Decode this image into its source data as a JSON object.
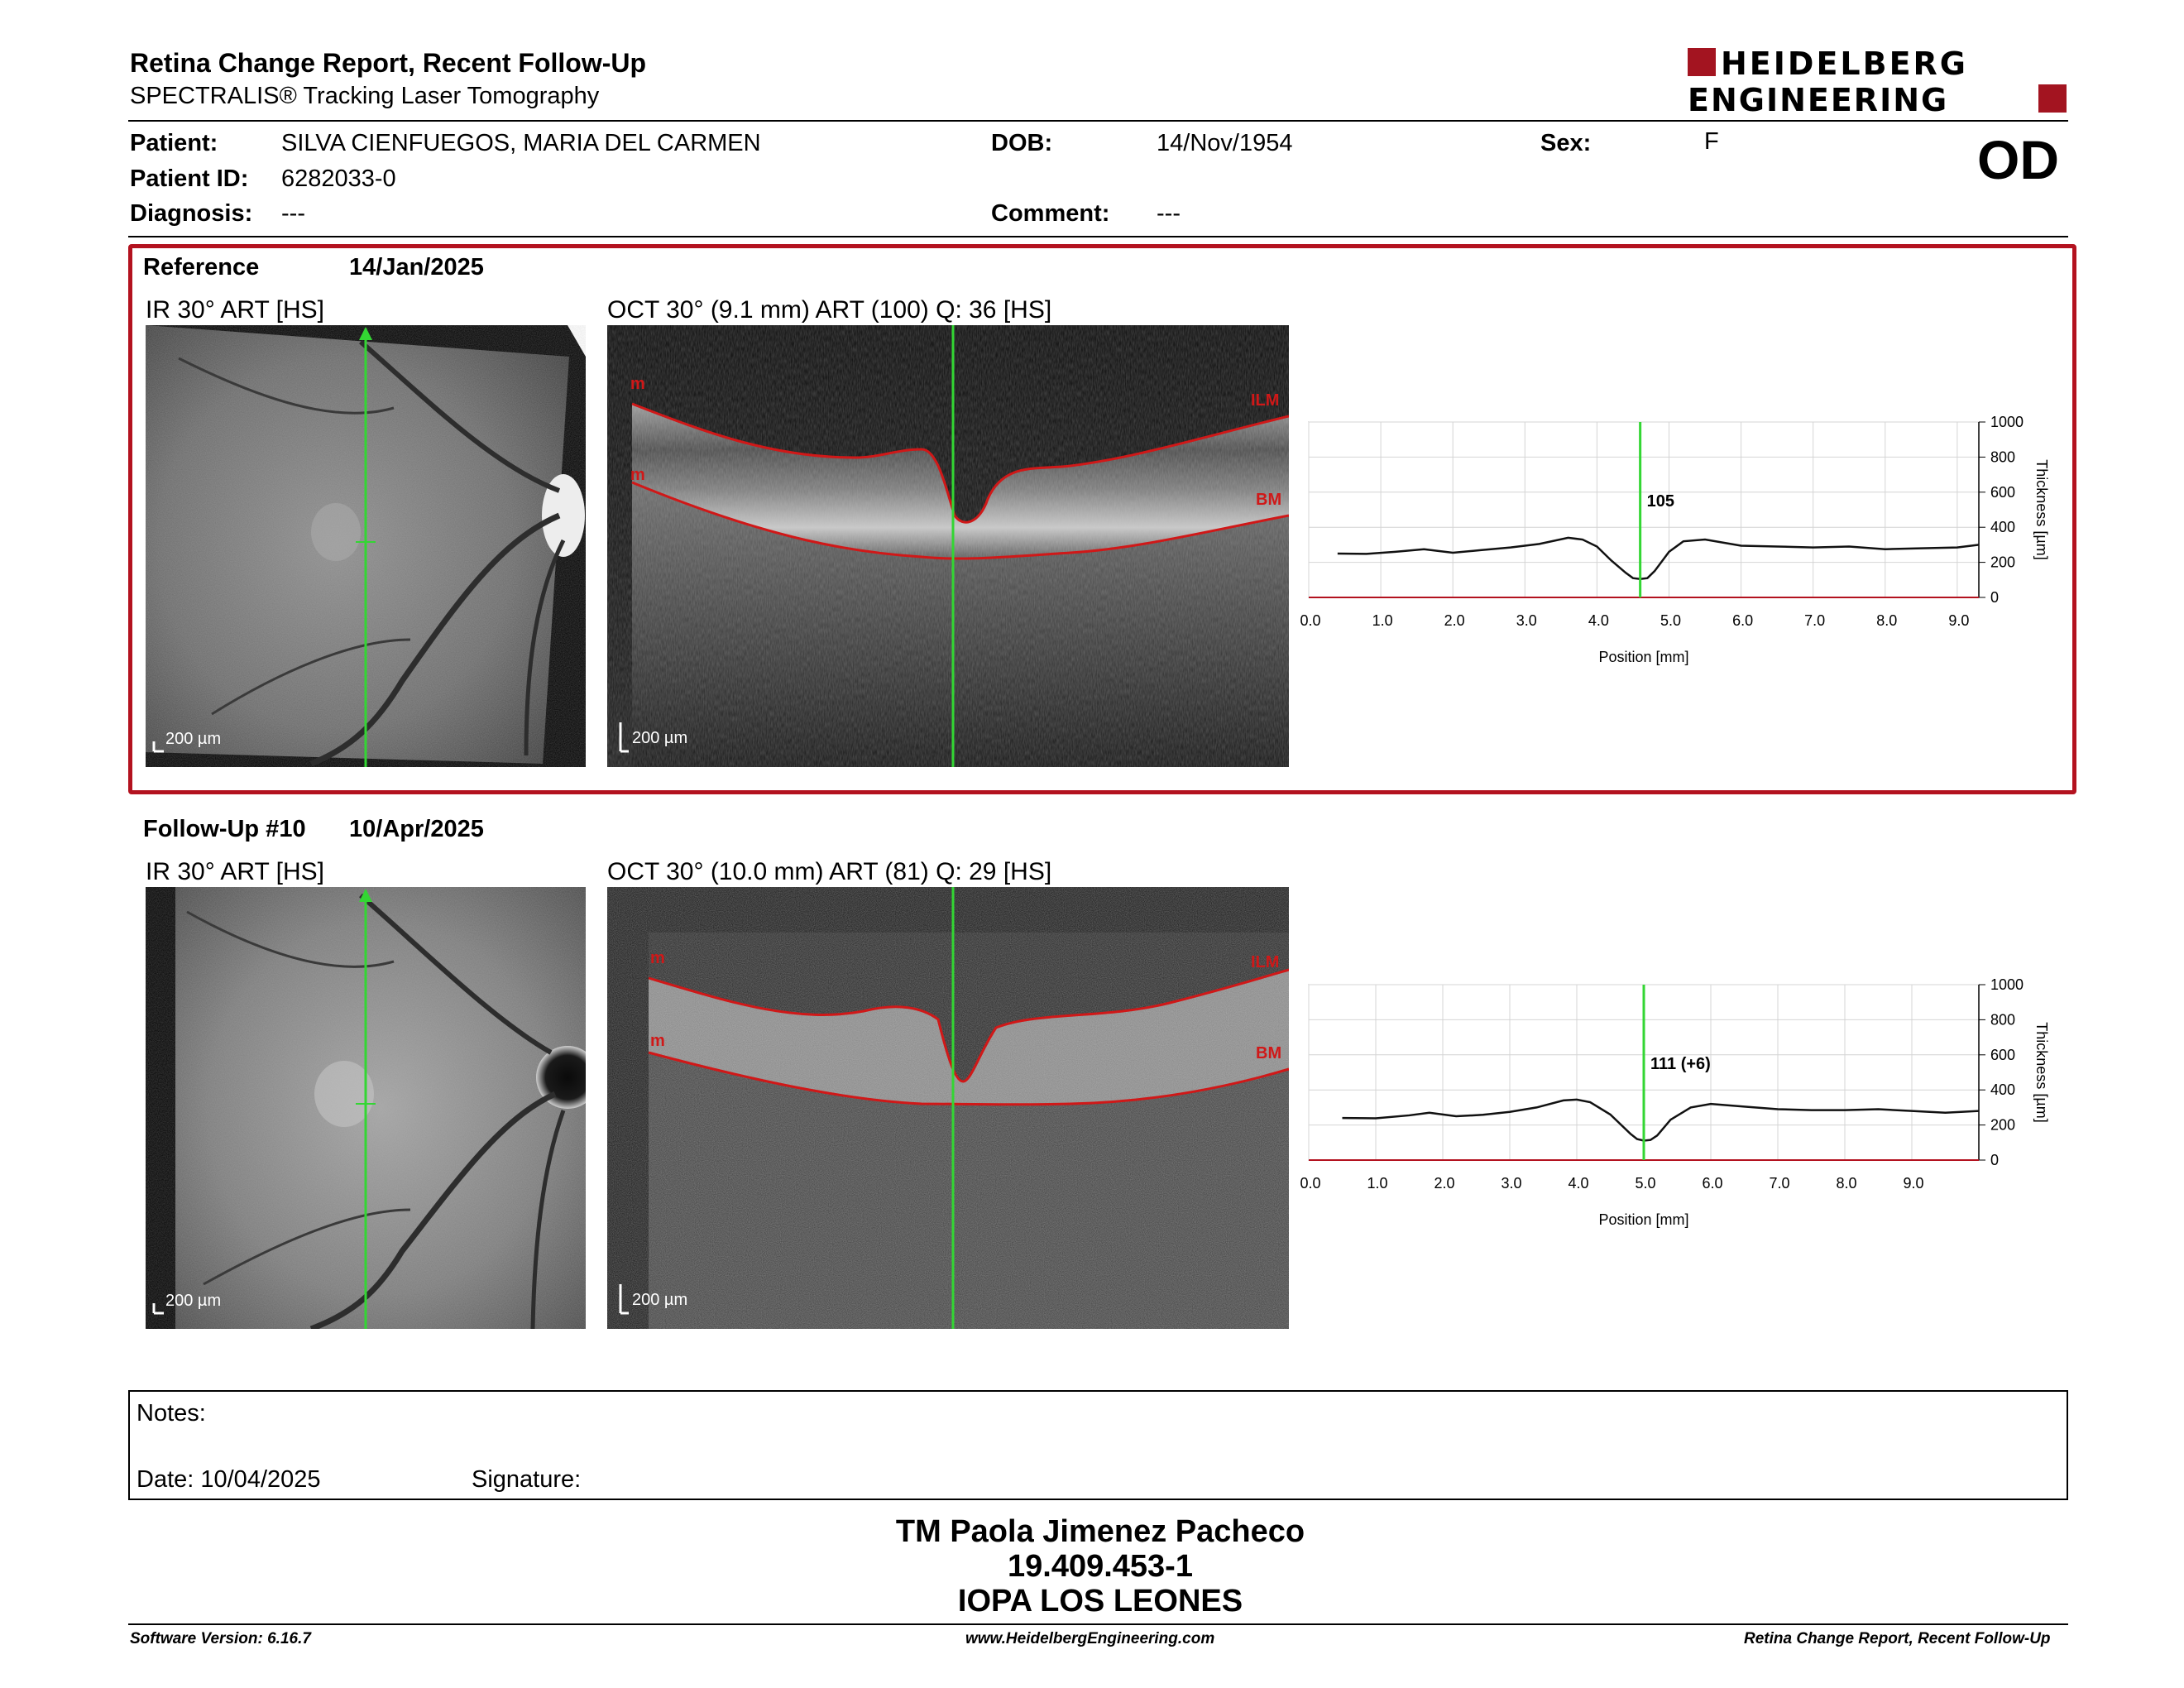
{
  "header": {
    "title": "Retina Change Report, Recent Follow-Up",
    "subtitle": "SPECTRALIS® Tracking Laser Tomography",
    "logo_line1": "HEIDELBERG",
    "logo_line2": "ENGINEERING",
    "eye": "OD"
  },
  "patient": {
    "patient_label": "Patient:",
    "patient_value": "SILVA CIENFUEGOS, MARIA DEL CARMEN",
    "id_label": "Patient ID:",
    "id_value": "6282033-0",
    "diagnosis_label": "Diagnosis:",
    "diagnosis_value": "---",
    "dob_label": "DOB:",
    "dob_value": "14/Nov/1954",
    "comment_label": "Comment:",
    "comment_value": "---",
    "sex_label": "Sex:",
    "sex_value": "F"
  },
  "reference": {
    "label": "Reference",
    "date": "14/Jan/2025",
    "ir_caption": "IR 30° ART [HS]",
    "oct_caption": "OCT 30° (9.1 mm) ART (100) Q: 36 [HS]",
    "ir_scale": "200 µm",
    "oct_scale": "200 µm",
    "ilm_label": "ILM",
    "bm_label": "BM",
    "m_label": "m",
    "chart": {
      "type": "line",
      "x": [
        0.4,
        0.8,
        1.2,
        1.6,
        2.0,
        2.4,
        2.8,
        3.2,
        3.6,
        3.8,
        4.0,
        4.2,
        4.4,
        4.5,
        4.6,
        4.7,
        4.8,
        5.0,
        5.2,
        5.5,
        6.0,
        6.5,
        7.0,
        7.5,
        8.0,
        8.5,
        9.0,
        9.3
      ],
      "y": [
        250,
        248,
        260,
        275,
        255,
        270,
        285,
        305,
        340,
        330,
        290,
        210,
        140,
        110,
        105,
        110,
        150,
        260,
        320,
        330,
        295,
        290,
        285,
        290,
        275,
        280,
        285,
        300
      ],
      "marker_x": 4.6,
      "marker_label": "105",
      "xlabel": "Position [mm]",
      "ylabel": "Thickness [µm]",
      "xlim": [
        0,
        9.3
      ],
      "ylim": [
        0,
        1000
      ],
      "xticks": [
        "0.0",
        "1.0",
        "2.0",
        "3.0",
        "4.0",
        "5.0",
        "6.0",
        "7.0",
        "8.0",
        "9.0"
      ],
      "yticks": [
        "0",
        "200",
        "400",
        "600",
        "800",
        "1000"
      ],
      "grid": true
    }
  },
  "followup": {
    "label": "Follow-Up #10",
    "date": "10/Apr/2025",
    "ir_caption": "IR 30° ART [HS]",
    "oct_caption": "OCT 30° (10.0 mm) ART (81) Q: 29 [HS]",
    "ir_scale": "200 µm",
    "oct_scale": "200 µm",
    "ilm_label": "ILM",
    "bm_label": "BM",
    "m_label": "m",
    "chart": {
      "type": "line",
      "x": [
        0.5,
        1.0,
        1.5,
        1.8,
        2.2,
        2.6,
        3.0,
        3.4,
        3.8,
        4.0,
        4.2,
        4.5,
        4.8,
        4.9,
        5.0,
        5.1,
        5.2,
        5.4,
        5.7,
        6.0,
        6.5,
        7.0,
        7.5,
        8.0,
        8.5,
        9.0,
        9.5,
        10.0
      ],
      "y": [
        240,
        238,
        255,
        270,
        250,
        258,
        275,
        300,
        340,
        345,
        330,
        260,
        150,
        120,
        111,
        115,
        140,
        230,
        300,
        320,
        305,
        290,
        285,
        285,
        290,
        280,
        270,
        280
      ],
      "marker_x": 5.0,
      "marker_label": "111 (+6)",
      "xlabel": "Position [mm]",
      "ylabel": "Thickness [µm]",
      "xlim": [
        0,
        10.0
      ],
      "ylim": [
        0,
        1000
      ],
      "xticks": [
        "0.0",
        "1.0",
        "2.0",
        "3.0",
        "4.0",
        "5.0",
        "6.0",
        "7.0",
        "8.0",
        "9.0"
      ],
      "yticks": [
        "0",
        "200",
        "400",
        "600",
        "800",
        "1000"
      ],
      "grid": true
    }
  },
  "notes": {
    "notes_label": "Notes:",
    "date_label": "Date: 10/04/2025",
    "signature_label": "Signature:"
  },
  "signature": {
    "name": "TM Paola Jimenez Pacheco",
    "rut": "19.409.453-1",
    "org": "IOPA LOS LEONES"
  },
  "footer": {
    "software": "Software Version: 6.16.7",
    "website": "www.HeidelbergEngineering.com",
    "report": "Retina Change Report, Recent Follow-Up"
  },
  "colors": {
    "accent": "#b3121f",
    "marker": "#33d633",
    "segmentation": "#d01818"
  }
}
